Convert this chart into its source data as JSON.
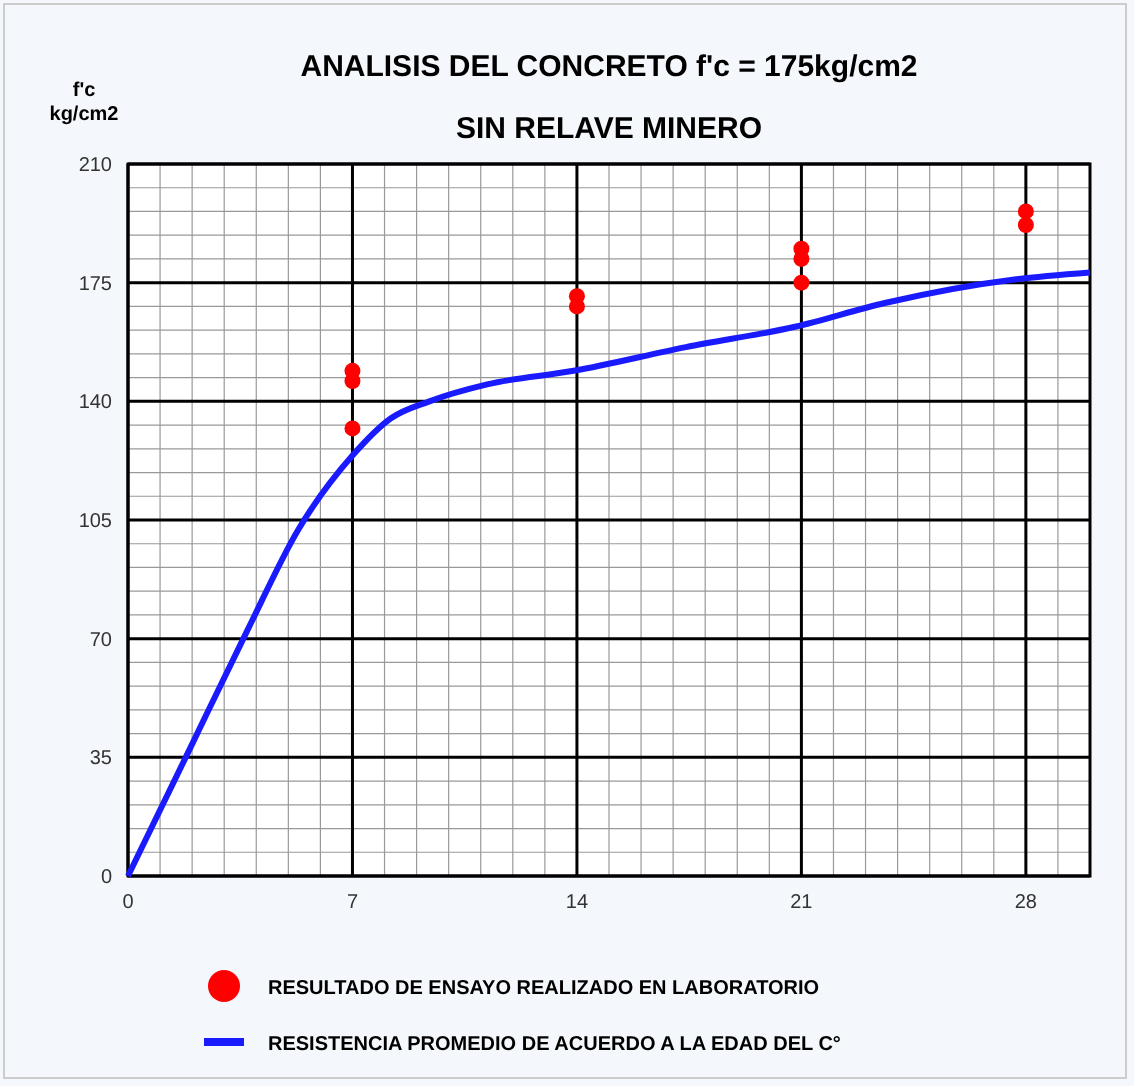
{
  "chart_data": {
    "type": "line",
    "title": "ANALISIS DEL CONCRETO f'c = 175kg/cm2",
    "subtitle": "SIN RELAVE MINERO",
    "ylabel": "f'c kg/cm2",
    "xlim": [
      0,
      30
    ],
    "xticks": [
      0,
      7,
      14,
      21,
      28
    ],
    "ylim": [
      0,
      210
    ],
    "yticks": [
      0,
      35,
      70,
      105,
      140,
      175,
      210
    ],
    "grid": true,
    "legend": "bottom",
    "series": [
      {
        "name": "RESULTADO DE ENSAYO REALIZADO EN LABORATORIO",
        "type": "scatter",
        "marker": "circle",
        "color": "#ff0000",
        "x": [
          7,
          7,
          7,
          14,
          14,
          21,
          21,
          21,
          28,
          28
        ],
        "values": [
          149,
          146,
          132,
          171,
          168,
          185,
          182,
          175,
          196,
          192
        ]
      },
      {
        "name": "RESISTENCIA PROMEDIO  DE ACUERDO A LA EDAD DEL C°",
        "marker": "none",
        "color": "#1a1aff",
        "x": [
          0,
          1.8,
          3.7,
          5.3,
          7,
          8.2,
          9.4,
          11.2,
          13.9,
          17.4,
          20.8,
          23.6,
          27.7,
          30
        ],
        "values": [
          0,
          35,
          72,
          102,
          124,
          135,
          140,
          145,
          149,
          156,
          162,
          169,
          176,
          178
        ]
      }
    ]
  }
}
